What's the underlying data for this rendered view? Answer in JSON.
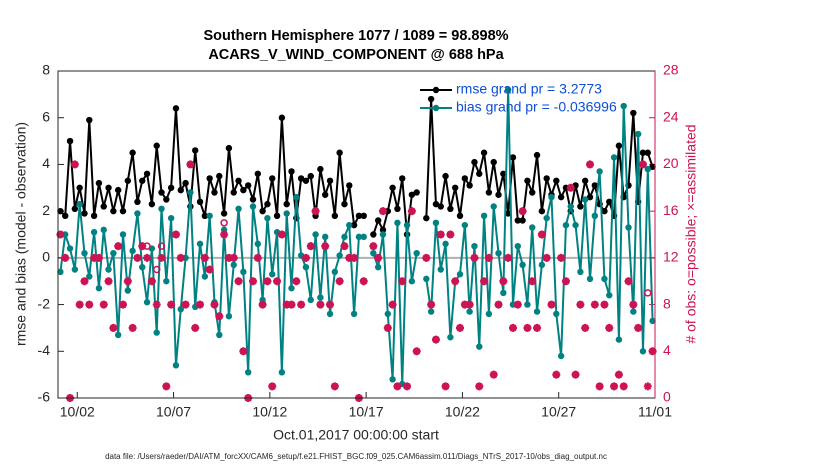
{
  "chart_data": {
    "type": "line",
    "title": [
      "Southern Hemisphere 1077 / 1089 = 98.898%",
      "ACARS_V_WIND_COMPONENT @ 688 hPa"
    ],
    "xlabel": "Oct.01,2017 00:00:00 start",
    "ylabel": "rmse and bias (model - observation)",
    "y2label": "# of obs: o=possible; ×=assimilated",
    "footnote": "data file: /Users/raeder/DAI/ATM_forcXX/CAM6_setup/f.e21.FHIST_BGC.f09_025.CAM6assim.011/Diags_NTrS_2017-10/obs_diag_output.nc",
    "xlim": [
      0,
      31
    ],
    "xticks": [
      {
        "value": 1,
        "label": "10/02"
      },
      {
        "value": 6,
        "label": "10/07"
      },
      {
        "value": 11,
        "label": "10/12"
      },
      {
        "value": 16,
        "label": "10/17"
      },
      {
        "value": 21,
        "label": "10/22"
      },
      {
        "value": 26,
        "label": "10/27"
      },
      {
        "value": 31,
        "label": "11/01"
      }
    ],
    "ylim": [
      -6,
      8
    ],
    "yticks": [
      -6,
      -4,
      -2,
      0,
      2,
      4,
      6,
      8
    ],
    "y2lim": [
      0,
      28
    ],
    "y2ticks": [
      0,
      4,
      8,
      12,
      16,
      20,
      24,
      28
    ],
    "y2color": "#cc1455",
    "zero_line": true,
    "legend": "upper right",
    "legend_color": "#0b4fd6",
    "x": [
      0.125,
      0.375,
      0.625,
      0.875,
      1.125,
      1.375,
      1.625,
      1.875,
      2.125,
      2.375,
      2.625,
      2.875,
      3.125,
      3.375,
      3.625,
      3.875,
      4.125,
      4.375,
      4.625,
      4.875,
      5.125,
      5.375,
      5.625,
      5.875,
      6.125,
      6.375,
      6.625,
      6.875,
      7.125,
      7.375,
      7.625,
      7.875,
      8.125,
      8.375,
      8.625,
      8.875,
      9.125,
      9.375,
      9.625,
      9.875,
      10.125,
      10.375,
      10.625,
      10.875,
      11.125,
      11.375,
      11.625,
      11.875,
      12.125,
      12.375,
      12.625,
      12.875,
      13.125,
      13.375,
      13.625,
      13.875,
      14.125,
      14.375,
      14.625,
      14.875,
      15.125,
      15.375,
      15.625,
      15.875,
      16.125,
      16.375,
      16.625,
      16.875,
      17.125,
      17.375,
      17.625,
      17.875,
      18.125,
      18.375,
      18.625,
      18.875,
      19.125,
      19.375,
      19.625,
      19.875,
      20.125,
      20.375,
      20.625,
      20.875,
      21.125,
      21.375,
      21.625,
      21.875,
      22.125,
      22.375,
      22.625,
      22.875,
      23.125,
      23.375,
      23.625,
      23.875,
      24.125,
      24.375,
      24.625,
      24.875,
      25.125,
      25.375,
      25.625,
      25.875,
      26.125,
      26.375,
      26.625,
      26.875,
      27.125,
      27.375,
      27.625,
      27.875,
      28.125,
      28.375,
      28.625,
      28.875,
      29.125,
      29.375,
      29.625,
      29.875,
      30.125,
      30.375,
      30.625,
      30.875
    ],
    "series": [
      {
        "name": "rmse grand pr = 3.2773",
        "color": "#000000",
        "marker": "dot",
        "line": true,
        "axis": "y",
        "values": [
          2.0,
          1.8,
          5.0,
          2.1,
          3.0,
          1.9,
          5.9,
          1.8,
          3.2,
          2.2,
          3.0,
          2.0,
          2.9,
          2.0,
          3.3,
          4.5,
          2.4,
          3.3,
          3.6,
          2.3,
          4.8,
          2.8,
          2.5,
          3.0,
          6.4,
          2.9,
          3.2,
          2.2,
          4.6,
          2.4,
          1.8,
          3.4,
          2.8,
          3.5,
          1.9,
          4.7,
          2.8,
          3.3,
          2.9,
          3.1,
          2.5,
          3.6,
          2.0,
          2.3,
          3.4,
          1.8,
          6.0,
          2.3,
          3.7,
          1.7,
          3.4,
          3.3,
          3.5,
          1.8,
          3.8,
          2.7,
          3.3,
          1.8,
          4.5,
          2.3,
          3.1,
          1.4,
          1.8,
          1.8,
          null,
          1.0,
          1.6,
          1.2,
          2.0,
          3.0,
          2.1,
          3.4,
          1.0,
          2.7,
          2.8,
          null,
          1.7,
          6.8,
          2.3,
          2.2,
          3.5,
          2.1,
          3.0,
          1.8,
          3.4,
          3.1,
          4.1,
          3.6,
          4.5,
          2.8,
          4.1,
          2.7,
          3.6,
          1.9,
          4.3,
          1.6,
          1.6,
          3.3,
          2.8,
          4.4,
          2.0,
          3.4,
          2.7,
          3.3,
          2.6,
          3.0,
          2.0,
          3.1,
          2.2,
          3.3,
          2.6,
          3.1,
          2.3,
          2.0,
          2.4,
          1.8,
          4.8,
          2.6,
          3.1,
          6.2,
          2.4,
          4.5,
          4.5,
          3.9
        ]
      },
      {
        "name": "bias grand pr = -0.036996",
        "color": "#008282",
        "marker": "dot",
        "line": true,
        "axis": "y",
        "values": [
          -0.6,
          1.0,
          0.4,
          -0.5,
          2.3,
          0.2,
          -0.8,
          1.1,
          -1.3,
          1.2,
          -0.5,
          0.2,
          -3.3,
          1.0,
          -1.4,
          0.3,
          1.9,
          -0.4,
          -1.9,
          0.4,
          -3.2,
          2.1,
          -1.0,
          1.7,
          -4.6,
          -2.2,
          0.0,
          2.8,
          -2.1,
          0.6,
          -0.8,
          1.8,
          -1.9,
          -3.3,
          1.2,
          -2.5,
          -0.3,
          2.1,
          -0.6,
          -4.9,
          2.2,
          0.6,
          -1.8,
          1.7,
          -0.7,
          1.1,
          -4.9,
          1.9,
          -1.3,
          2.6,
          0.1,
          -0.4,
          -1.8,
          1.0,
          -1.7,
          0.9,
          -2.4,
          -0.6,
          0.1,
          0.9,
          1.4,
          -2.4,
          0.9,
          0.9,
          null,
          0.2,
          -0.4,
          1.0,
          -2.4,
          -5.2,
          1.5,
          -5.4,
          1.4,
          -1.0,
          0.2,
          null,
          -0.9,
          -2.3,
          1.5,
          -0.5,
          0.6,
          -3.4,
          -1.0,
          -0.7,
          1.4,
          -2.3,
          0.5,
          -3.8,
          1.8,
          -2.4,
          2.2,
          0.2,
          -1.5,
          7.2,
          -2.0,
          0.5,
          -0.3,
          -2.0,
          1.3,
          -2.3,
          -0.3,
          1.7,
          2.6,
          -2.4,
          -4.2,
          1.4,
          2.2,
          1.4,
          -0.6,
          2.5,
          -0.9,
          1.8,
          3.7,
          -0.9,
          -1.6,
          4.3,
          -3.5,
          6.5,
          1.3,
          -2.3,
          5.3,
          -4.0,
          3.8,
          -2.7
        ]
      },
      {
        "color": "#cc1455",
        "marker": "open-circle",
        "line": false,
        "axis": "y2",
        "values": [
          14,
          12,
          0,
          20,
          8,
          10,
          8,
          12,
          12,
          8,
          10,
          6,
          13,
          8,
          10,
          6,
          12,
          13,
          13,
          10,
          11,
          13,
          1,
          8,
          14,
          12,
          8,
          20,
          6,
          8,
          12,
          11,
          8,
          7,
          15,
          12,
          12,
          10,
          4,
          0,
          10,
          12,
          8,
          10,
          1,
          10,
          14,
          8,
          8,
          10,
          8,
          12,
          13,
          16,
          8,
          13,
          8,
          1,
          10,
          13,
          12,
          12,
          0,
          10,
          null,
          13,
          12,
          16,
          6,
          8,
          1,
          10,
          1,
          16,
          4,
          null,
          12,
          8,
          5,
          14,
          1,
          14,
          10,
          6,
          8,
          8,
          12,
          1,
          10,
          12,
          2,
          8,
          10,
          12,
          6,
          8,
          16,
          6,
          10,
          6,
          14,
          12,
          8,
          2,
          12,
          10,
          18,
          2,
          8,
          6,
          20,
          8,
          1,
          8,
          6,
          1,
          2,
          1,
          10,
          8,
          6,
          20,
          9,
          4
        ]
      },
      {
        "color": "#cc1455",
        "marker": "asterisk",
        "line": false,
        "axis": "y2",
        "values": [
          14,
          12,
          0,
          20,
          8,
          10,
          8,
          12,
          12,
          8,
          10,
          6,
          13,
          8,
          10,
          6,
          12,
          13,
          12,
          10,
          8,
          12,
          1,
          8,
          14,
          12,
          8,
          20,
          6,
          8,
          12,
          11,
          8,
          7,
          14,
          12,
          12,
          10,
          4,
          0,
          10,
          12,
          8,
          10,
          1,
          10,
          14,
          8,
          8,
          10,
          8,
          12,
          13,
          16,
          8,
          13,
          8,
          1,
          10,
          13,
          12,
          12,
          0,
          10,
          null,
          13,
          12,
          16,
          6,
          8,
          1,
          10,
          1,
          16,
          4,
          null,
          12,
          8,
          5,
          14,
          1,
          14,
          10,
          6,
          8,
          8,
          12,
          1,
          10,
          12,
          2,
          8,
          10,
          12,
          6,
          8,
          16,
          6,
          10,
          6,
          14,
          12,
          8,
          2,
          12,
          10,
          18,
          2,
          8,
          6,
          20,
          8,
          1,
          8,
          6,
          1,
          2,
          1,
          10,
          8,
          6,
          20,
          1,
          4
        ]
      }
    ]
  }
}
